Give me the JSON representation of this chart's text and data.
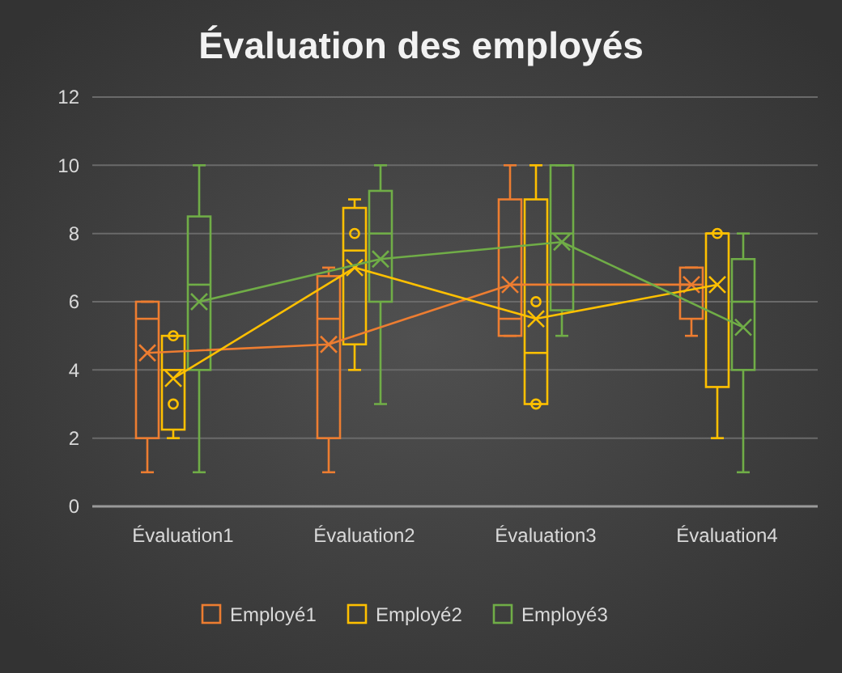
{
  "chart_data": {
    "type": "box",
    "title": "Évaluation des employés",
    "categories": [
      "Évaluation1",
      "Évaluation2",
      "Évaluation3",
      "Évaluation4"
    ],
    "ylim": [
      0,
      12
    ],
    "yticks": [
      0,
      2,
      4,
      6,
      8,
      10,
      12
    ],
    "grid": "y",
    "legend": "bottom",
    "series": [
      {
        "name": "Employé1",
        "color": "#ed7d31",
        "boxes": [
          {
            "low": 1,
            "q1": 2,
            "median": 5.5,
            "q3": 6,
            "high": 6,
            "mean": 4.5
          },
          {
            "low": 1,
            "q1": 2,
            "median": 5.5,
            "q3": 6.75,
            "high": 7,
            "mean": 4.75
          },
          {
            "low": 5,
            "q1": 5,
            "median": 5.5,
            "q3": 9,
            "high": 10,
            "mean": 6.5
          },
          {
            "low": 5,
            "q1": 5.5,
            "median": 6.5,
            "q3": 7,
            "high": 7,
            "mean": 6.5
          }
        ]
      },
      {
        "name": "Employé2",
        "color": "#ffc000",
        "boxes": [
          {
            "low": 2,
            "q1": 2.25,
            "median": 4,
            "q3": 5,
            "high": 5,
            "mean": 3.75,
            "outliers": [
              5,
              3
            ]
          },
          {
            "low": 4,
            "q1": 4.75,
            "median": 7.5,
            "q3": 8.75,
            "high": 9,
            "mean": 7,
            "outliers": [
              8
            ]
          },
          {
            "low": 3,
            "q1": 3,
            "median": 4.5,
            "q3": 9,
            "high": 10,
            "mean": 5.5,
            "outliers": [
              6,
              3
            ]
          },
          {
            "low": 2,
            "q1": 3.5,
            "median": 8,
            "q3": 8,
            "high": 8,
            "mean": 6.5,
            "outliers": [
              8
            ]
          }
        ]
      },
      {
        "name": "Employé3",
        "color": "#70ad47",
        "boxes": [
          {
            "low": 1,
            "q1": 4,
            "median": 6.5,
            "q3": 8.5,
            "high": 10,
            "mean": 6
          },
          {
            "low": 3,
            "q1": 6,
            "median": 8,
            "q3": 9.25,
            "high": 10,
            "mean": 7.25
          },
          {
            "low": 5,
            "q1": 5.75,
            "median": 8,
            "q3": 10,
            "high": 10,
            "mean": 7.75
          },
          {
            "low": 1,
            "q1": 4,
            "median": 6,
            "q3": 7.25,
            "high": 8,
            "mean": 5.25
          }
        ]
      },
      {
        "type": "line",
        "color": "#ed7d31",
        "values": [
          4.5,
          4.75,
          6.5,
          6.5
        ]
      },
      {
        "type": "line",
        "color": "#ffc000",
        "values": [
          3.75,
          7,
          5.5,
          6.5
        ]
      },
      {
        "type": "line",
        "color": "#70ad47",
        "values": [
          6,
          7.25,
          7.75,
          5.25
        ]
      }
    ]
  }
}
